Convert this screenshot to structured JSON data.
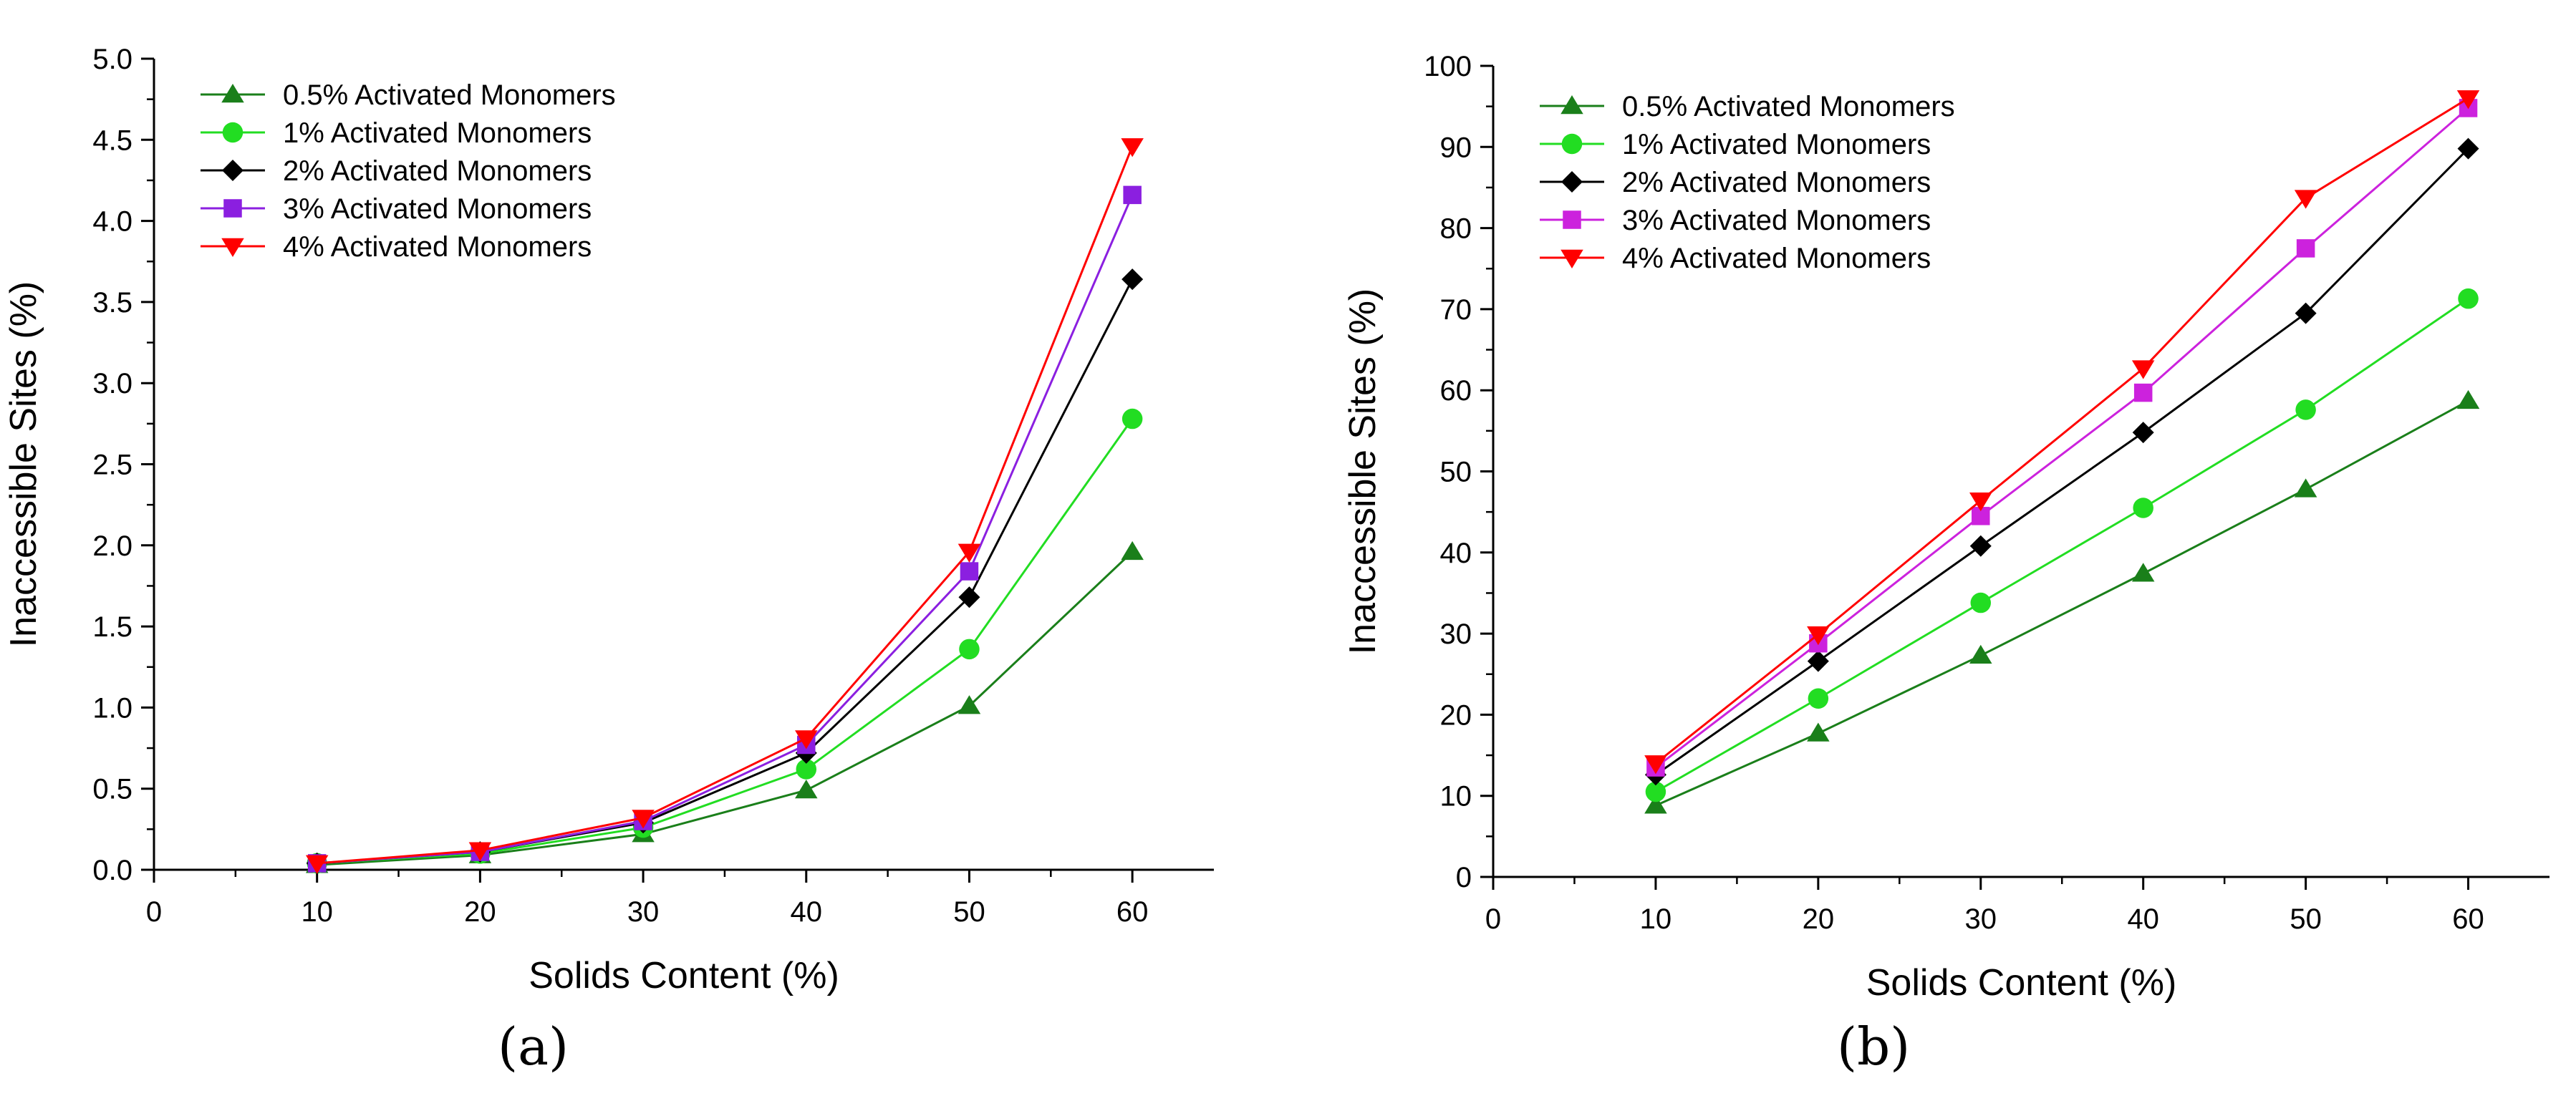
{
  "chart_data": [
    {
      "type": "line",
      "panel": "a",
      "xlabel": "Solids Content (%)",
      "ylabel": "Inaccessible Sites (%)",
      "xlim": [
        0,
        65
      ],
      "ylim": [
        0,
        5.0
      ],
      "x_ticks": [
        "0",
        "10",
        "20",
        "30",
        "40",
        "50",
        "60"
      ],
      "y_ticks": [
        "0.0",
        "0.5",
        "1.0",
        "1.5",
        "2.0",
        "2.5",
        "3.0",
        "3.5",
        "4.0",
        "4.5",
        "5.0"
      ],
      "legend_position": "top-left",
      "x": [
        10,
        20,
        30,
        40,
        50,
        60
      ],
      "series": [
        {
          "name": "0.5% Activated Monomers",
          "marker": "triangle-up",
          "color": "#1a7f1a",
          "values": [
            0.03,
            0.09,
            0.22,
            0.49,
            1.01,
            1.96
          ]
        },
        {
          "name": "1% Activated Monomers",
          "marker": "circle",
          "color": "#22dd22",
          "values": [
            0.04,
            0.1,
            0.26,
            0.62,
            1.36,
            2.78
          ]
        },
        {
          "name": "2% Activated Monomers",
          "marker": "diamond",
          "color": "#000000",
          "values": [
            0.04,
            0.11,
            0.29,
            0.72,
            1.68,
            3.64
          ]
        },
        {
          "name": "3% Activated Monomers",
          "marker": "square",
          "color": "#8b1fe0",
          "values": [
            0.04,
            0.11,
            0.3,
            0.77,
            1.84,
            4.16
          ]
        },
        {
          "name": "4% Activated Monomers",
          "marker": "triangle-down",
          "color": "#ff0000",
          "values": [
            0.04,
            0.12,
            0.32,
            0.81,
            1.96,
            4.46
          ]
        }
      ]
    },
    {
      "type": "line",
      "panel": "b",
      "xlabel": "Solids Content (%)",
      "ylabel": "Inaccessible Sites (%)",
      "xlim": [
        0,
        65
      ],
      "ylim": [
        0,
        100
      ],
      "x_ticks": [
        "0",
        "10",
        "20",
        "30",
        "40",
        "50",
        "60"
      ],
      "y_ticks": [
        "0",
        "10",
        "20",
        "30",
        "40",
        "50",
        "60",
        "70",
        "80",
        "90",
        "100"
      ],
      "legend_position": "top-left",
      "x": [
        10,
        20,
        30,
        40,
        50,
        60
      ],
      "series": [
        {
          "name": "0.5% Activated Monomers",
          "marker": "triangle-up",
          "color": "#1a7f1a",
          "values": [
            8.8,
            17.7,
            27.3,
            37.4,
            47.8,
            58.7
          ]
        },
        {
          "name": "1% Activated Monomers",
          "marker": "circle",
          "color": "#22dd22",
          "values": [
            10.5,
            22.0,
            33.8,
            45.5,
            57.6,
            71.3
          ]
        },
        {
          "name": "2% Activated Monomers",
          "marker": "diamond",
          "color": "#000000",
          "values": [
            12.6,
            26.6,
            40.8,
            54.8,
            69.5,
            89.8
          ]
        },
        {
          "name": "3% Activated Monomers",
          "marker": "square",
          "color": "#cc22dd",
          "values": [
            13.5,
            28.8,
            44.5,
            59.7,
            77.5,
            94.8
          ]
        },
        {
          "name": "4% Activated Monomers",
          "marker": "triangle-down",
          "color": "#ff0000",
          "values": [
            14.0,
            29.9,
            46.4,
            62.7,
            83.7,
            96.0
          ]
        }
      ]
    }
  ],
  "panel_labels": [
    "(a)",
    "(b)"
  ]
}
